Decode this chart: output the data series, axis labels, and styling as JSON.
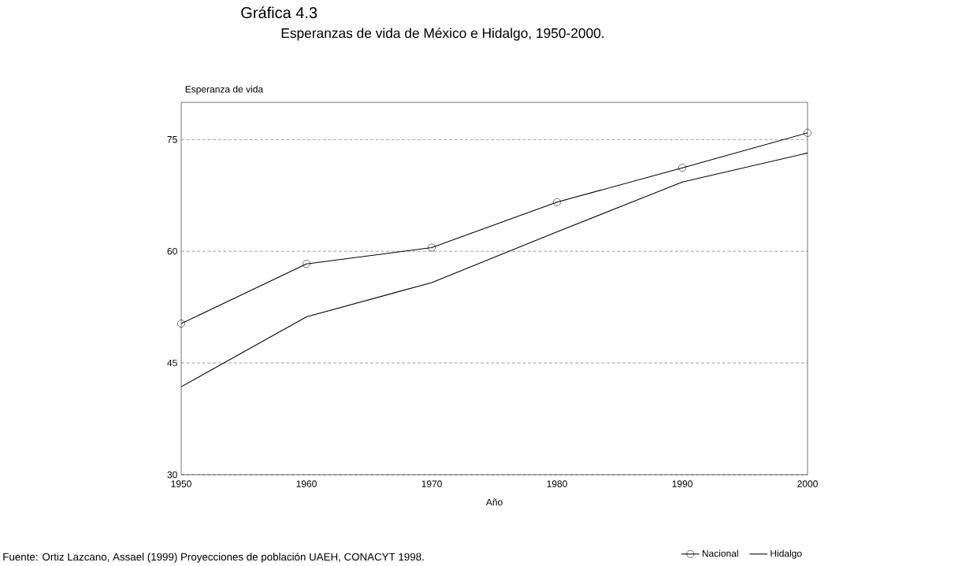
{
  "chart_data": {
    "type": "line",
    "title": "Gráfica  4.3",
    "subtitle": "Esperanzas de vida de México e Hidalgo, 1950-2000.",
    "xlabel": "Año",
    "ylabel": "Esperanza de vida",
    "x": [
      1950,
      1960,
      1970,
      1980,
      1990,
      2000
    ],
    "series": [
      {
        "name": "Nacional",
        "color": "#000000",
        "marker": "circle",
        "values": [
          50.3,
          58.3,
          60.5,
          66.6,
          71.2,
          75.9
        ]
      },
      {
        "name": "Hidalgo",
        "color": "#000000",
        "marker": "none",
        "values": [
          41.8,
          51.2,
          55.8,
          62.6,
          69.3,
          73.2
        ]
      }
    ],
    "xlim": [
      1950,
      2000
    ],
    "ylim": [
      30,
      80
    ],
    "xticks": [
      1950,
      1960,
      1970,
      1980,
      1990,
      2000
    ],
    "yticks": [
      30,
      45,
      60,
      75
    ],
    "grid": "y",
    "legend": "bottom right",
    "annotations": [
      "Fuente: Ortiz Lazcano, Assael (1999) Proyecciones de población  UAEH, CONACYT 1998."
    ]
  }
}
